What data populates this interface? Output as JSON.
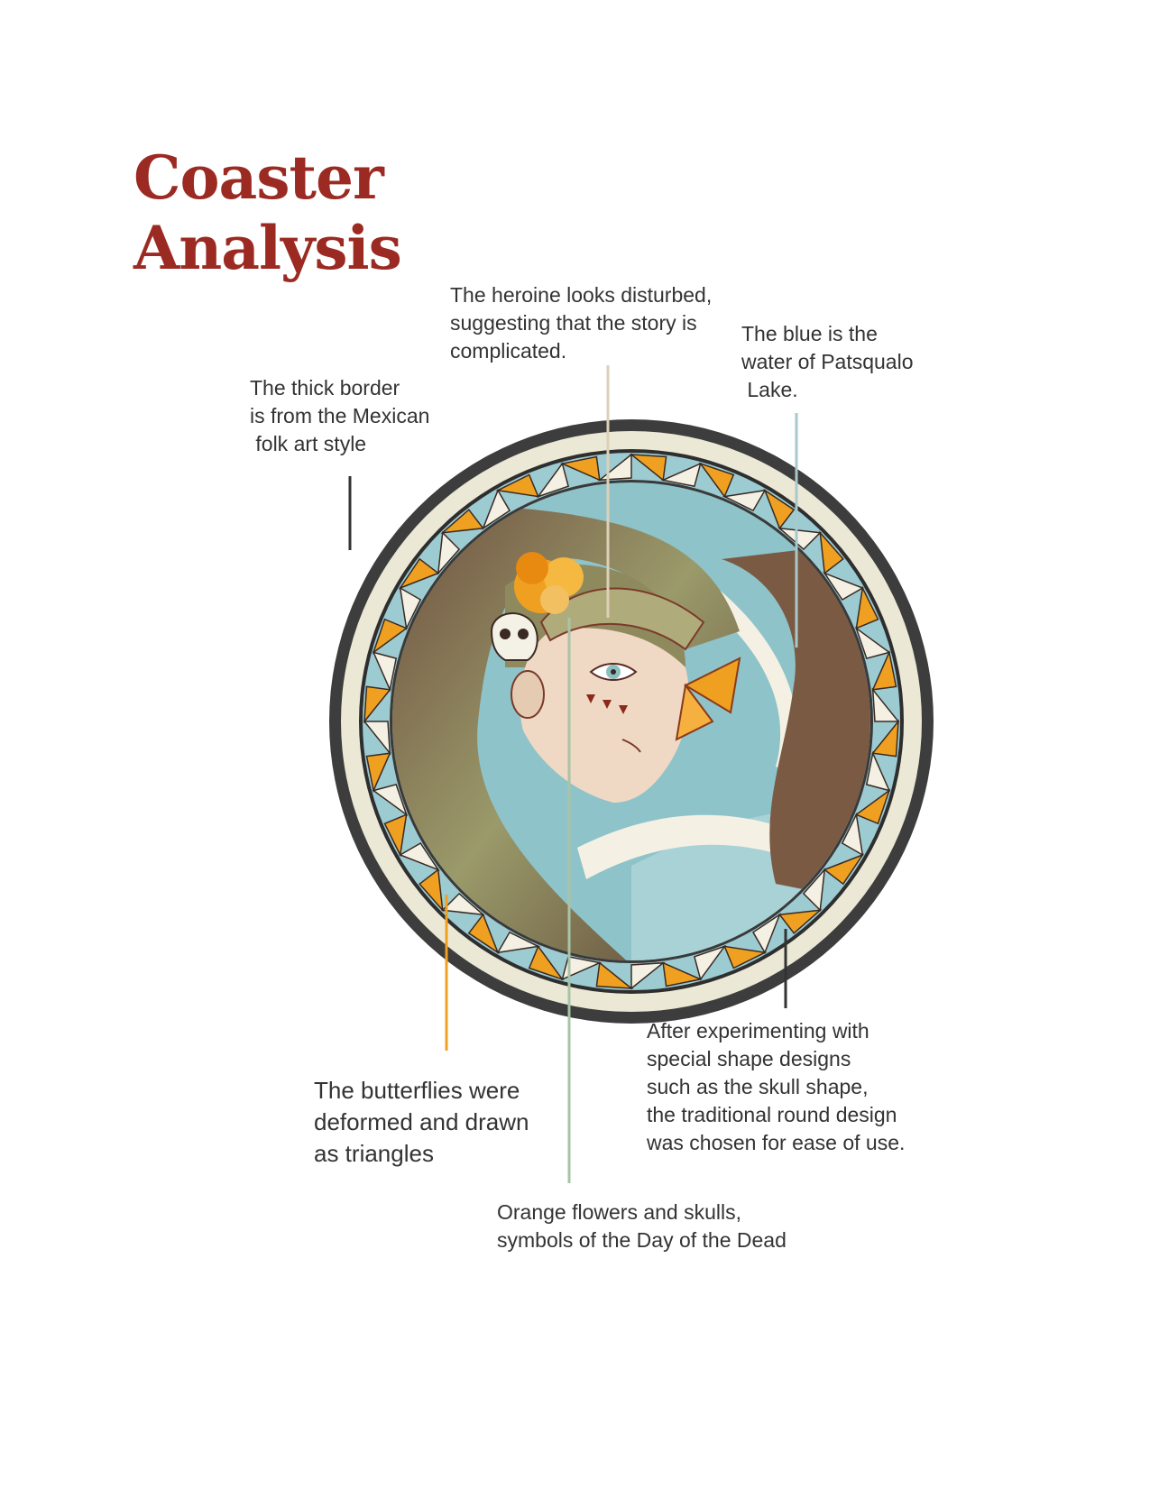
{
  "title": {
    "line1": "Coaster",
    "line2": "Analysis"
  },
  "annotations": {
    "heroine": [
      "The heroine looks disturbed,",
      "suggesting that the story is",
      "complicated."
    ],
    "blue": [
      "The blue is the",
      "water of Patsqualo",
      " Lake."
    ],
    "border": [
      "The thick border",
      "is from the Mexican",
      " folk art style"
    ],
    "butterflies": [
      "The butterflies were",
      "deformed and drawn",
      "as triangles"
    ],
    "shape": [
      "After experimenting with",
      "special shape designs",
      "such as the skull shape,",
      "the traditional round design",
      "was chosen for ease of use."
    ],
    "flowers": [
      "Orange flowers and skulls,",
      "symbols of the Day of the Dead"
    ]
  },
  "colors": {
    "title": "#9b2a22",
    "text": "#333333",
    "ring_dark": "#3d3d3d",
    "ring_cream": "#ece8d6",
    "butterfly_orange": "#f0a020",
    "lake_blue": "#9ccbd2",
    "hood_brown": "#7b5a44",
    "line_orange": "#f0a020",
    "line_green": "#a8c4a8",
    "line_blue": "#a8c8cc",
    "line_tan": "#ddd0b8",
    "line_dark": "#333333"
  }
}
